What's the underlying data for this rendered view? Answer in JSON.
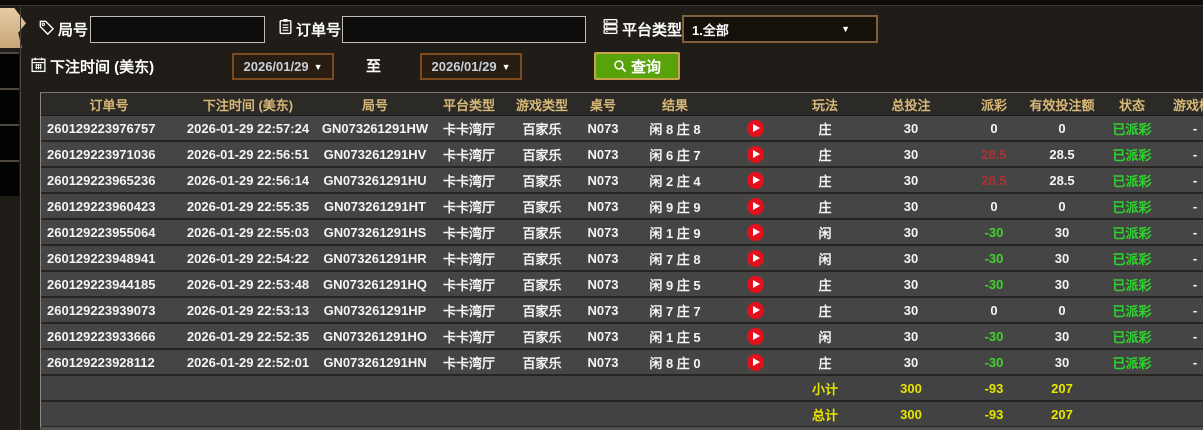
{
  "filters": {
    "round_label": "局号",
    "round_value": "",
    "order_label": "订单号",
    "order_value": "",
    "platform_label": "平台类型",
    "platform_value": "1.全部",
    "bet_time_label": "下注时间 (美东)",
    "date_from": "2026/01/29",
    "date_to": "2026/01/29",
    "to_label": "至",
    "search_label": "查询"
  },
  "icons": {
    "round": "tag-icon",
    "order": "clipboard-icon",
    "platform": "server-icon",
    "bet_time": "calendar-icon",
    "search": "magnifier-icon",
    "replay": "play-circle-icon",
    "dropdown": "chevron-down-icon"
  },
  "colors": {
    "accent_green": "#58a20b",
    "header_gold": "#d8b878",
    "payout_win_red": "#a93232",
    "payout_loss_green": "#3fd42c",
    "status_green": "#2fd32f",
    "summary_yellow": "#e8e400",
    "date_border": "#7c4a1c",
    "replay_red": "#e3111c"
  },
  "table": {
    "headers": [
      "订单号",
      "下注时间 (美东)",
      "局号",
      "平台类型",
      "游戏类型",
      "桌号",
      "结果",
      "",
      "玩法",
      "总投注",
      "派彩",
      "有效投注额",
      "状态",
      "游戏检查"
    ],
    "rows": [
      {
        "order_no": "260129223976757",
        "bet_time": "2026-01-29 22:57:24",
        "round_no": "GN073261291HW",
        "platform": "卡卡湾厅",
        "game_type": "百家乐",
        "table_no": "N073",
        "result": "闲 8 庄 8",
        "play": "庄",
        "total_bet": "30",
        "payout": "0",
        "payout_color": "white",
        "valid_bet": "0",
        "status": "已派彩",
        "extra": "-"
      },
      {
        "order_no": "260129223971036",
        "bet_time": "2026-01-29 22:56:51",
        "round_no": "GN073261291HV",
        "platform": "卡卡湾厅",
        "game_type": "百家乐",
        "table_no": "N073",
        "result": "闲 6 庄 7",
        "play": "庄",
        "total_bet": "30",
        "payout": "28.5",
        "payout_color": "red",
        "valid_bet": "28.5",
        "status": "已派彩",
        "extra": "-"
      },
      {
        "order_no": "260129223965236",
        "bet_time": "2026-01-29 22:56:14",
        "round_no": "GN073261291HU",
        "platform": "卡卡湾厅",
        "game_type": "百家乐",
        "table_no": "N073",
        "result": "闲 2 庄 4",
        "play": "庄",
        "total_bet": "30",
        "payout": "28.5",
        "payout_color": "red",
        "valid_bet": "28.5",
        "status": "已派彩",
        "extra": "-"
      },
      {
        "order_no": "260129223960423",
        "bet_time": "2026-01-29 22:55:35",
        "round_no": "GN073261291HT",
        "platform": "卡卡湾厅",
        "game_type": "百家乐",
        "table_no": "N073",
        "result": "闲 9 庄 9",
        "play": "庄",
        "total_bet": "30",
        "payout": "0",
        "payout_color": "white",
        "valid_bet": "0",
        "status": "已派彩",
        "extra": "-"
      },
      {
        "order_no": "260129223955064",
        "bet_time": "2026-01-29 22:55:03",
        "round_no": "GN073261291HS",
        "platform": "卡卡湾厅",
        "game_type": "百家乐",
        "table_no": "N073",
        "result": "闲 1 庄 9",
        "play": "闲",
        "total_bet": "30",
        "payout": "-30",
        "payout_color": "green",
        "valid_bet": "30",
        "status": "已派彩",
        "extra": "-"
      },
      {
        "order_no": "260129223948941",
        "bet_time": "2026-01-29 22:54:22",
        "round_no": "GN073261291HR",
        "platform": "卡卡湾厅",
        "game_type": "百家乐",
        "table_no": "N073",
        "result": "闲 7 庄 8",
        "play": "闲",
        "total_bet": "30",
        "payout": "-30",
        "payout_color": "green",
        "valid_bet": "30",
        "status": "已派彩",
        "extra": "-"
      },
      {
        "order_no": "260129223944185",
        "bet_time": "2026-01-29 22:53:48",
        "round_no": "GN073261291HQ",
        "platform": "卡卡湾厅",
        "game_type": "百家乐",
        "table_no": "N073",
        "result": "闲 9 庄 5",
        "play": "庄",
        "total_bet": "30",
        "payout": "-30",
        "payout_color": "green",
        "valid_bet": "30",
        "status": "已派彩",
        "extra": "-"
      },
      {
        "order_no": "260129223939073",
        "bet_time": "2026-01-29 22:53:13",
        "round_no": "GN073261291HP",
        "platform": "卡卡湾厅",
        "game_type": "百家乐",
        "table_no": "N073",
        "result": "闲 7 庄 7",
        "play": "庄",
        "total_bet": "30",
        "payout": "0",
        "payout_color": "white",
        "valid_bet": "0",
        "status": "已派彩",
        "extra": "-"
      },
      {
        "order_no": "260129223933666",
        "bet_time": "2026-01-29 22:52:35",
        "round_no": "GN073261291HO",
        "platform": "卡卡湾厅",
        "game_type": "百家乐",
        "table_no": "N073",
        "result": "闲 1 庄 5",
        "play": "闲",
        "total_bet": "30",
        "payout": "-30",
        "payout_color": "green",
        "valid_bet": "30",
        "status": "已派彩",
        "extra": "-"
      },
      {
        "order_no": "260129223928112",
        "bet_time": "2026-01-29 22:52:01",
        "round_no": "GN073261291HN",
        "platform": "卡卡湾厅",
        "game_type": "百家乐",
        "table_no": "N073",
        "result": "闲 8 庄 0",
        "play": "庄",
        "total_bet": "30",
        "payout": "-30",
        "payout_color": "green",
        "valid_bet": "30",
        "status": "已派彩",
        "extra": "-"
      }
    ],
    "subtotal": {
      "label": "小计",
      "total_bet": "300",
      "payout": "-93",
      "valid_bet": "207"
    },
    "total": {
      "label": "总计",
      "total_bet": "300",
      "payout": "-93",
      "valid_bet": "207"
    }
  }
}
